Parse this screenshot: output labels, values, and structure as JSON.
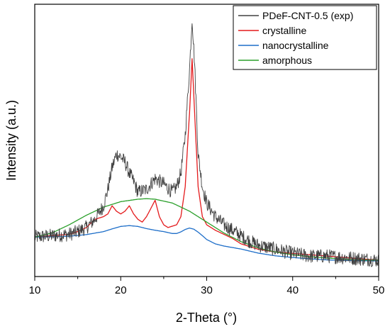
{
  "chart_data": {
    "type": "line",
    "title": "",
    "xlabel": "2-Theta (°)",
    "ylabel": "Intensity (a.u.)",
    "xlim": [
      10,
      50
    ],
    "ylim": [
      0,
      100
    ],
    "xticks": [
      10,
      20,
      30,
      40,
      50
    ],
    "y_tick_labels": "none",
    "grid": false,
    "legend_position": "top-right",
    "series": [
      {
        "name": "PDeF-CNT-0.5 (exp)",
        "color": "#404040",
        "noisy": true,
        "x": [
          10,
          12,
          14,
          15,
          16,
          17,
          18,
          18.5,
          19,
          19.5,
          20,
          20.5,
          21,
          21.5,
          22,
          23,
          24,
          25,
          26,
          26.5,
          27,
          27.5,
          28,
          28.3,
          28.6,
          29,
          29.5,
          30,
          31,
          32,
          33,
          34,
          35,
          36,
          38,
          40,
          42,
          44,
          46,
          48,
          50
        ],
        "y": [
          14.5,
          15,
          15.5,
          16.5,
          18,
          21,
          26,
          32,
          40,
          45,
          44,
          42,
          38,
          35,
          31,
          32,
          36,
          34,
          31,
          33,
          38,
          52,
          76,
          95,
          78,
          45,
          33,
          27,
          22,
          19,
          17,
          15,
          13,
          11.5,
          10,
          8.5,
          7.5,
          7.5,
          7,
          6.5,
          6
        ]
      },
      {
        "name": "crystalline",
        "color": "#e41a1c",
        "noisy": false,
        "x": [
          10,
          12,
          14,
          15,
          16,
          17,
          18,
          18.5,
          19,
          19.5,
          20,
          20.5,
          21,
          21.5,
          22,
          22.5,
          23,
          23.5,
          24,
          24.5,
          25,
          25.5,
          26,
          26.5,
          27,
          27.5,
          28,
          28.3,
          28.6,
          29,
          29.5,
          30,
          31,
          32,
          33,
          34,
          36,
          38,
          40,
          42,
          44,
          46,
          48,
          50
        ],
        "y": [
          14.5,
          15,
          15.5,
          16.5,
          18,
          21,
          22,
          23,
          26,
          24,
          23,
          24,
          26,
          23,
          21,
          20,
          22,
          25,
          28,
          22,
          19,
          18,
          18.5,
          19,
          22,
          33,
          60,
          80,
          60,
          33,
          22,
          19,
          17,
          15.5,
          14,
          12,
          10,
          9,
          8.5,
          8,
          7.5,
          7,
          6.5,
          6
        ]
      },
      {
        "name": "nanocrystalline",
        "color": "#1f6fc9",
        "noisy": false,
        "x": [
          10,
          12,
          14,
          16,
          18,
          19,
          20,
          21,
          22,
          23,
          24,
          25,
          26,
          26.5,
          27,
          27.5,
          28,
          28.5,
          29,
          29.5,
          30,
          31,
          32,
          34,
          36,
          38,
          40,
          42,
          44,
          46,
          48,
          50
        ],
        "y": [
          14.5,
          14.6,
          14.8,
          15.4,
          16.5,
          17.5,
          18.4,
          18.7,
          18.4,
          17.6,
          17,
          16.5,
          15.8,
          15.8,
          16.4,
          17.3,
          17.8,
          17.4,
          16.3,
          15,
          13.6,
          12,
          11.2,
          10.1,
          8.6,
          7.6,
          7,
          6.5,
          6.1,
          5.9,
          5.8,
          5.7
        ]
      },
      {
        "name": "amorphous",
        "color": "#2ca02c",
        "noisy": false,
        "x": [
          10,
          12,
          14,
          16,
          18,
          20,
          22,
          23,
          24,
          26,
          28,
          30,
          32,
          34,
          36,
          38,
          40,
          42,
          44,
          46,
          48,
          50
        ],
        "y": [
          14.5,
          16,
          19,
          22.5,
          25.5,
          27.5,
          28.4,
          28.6,
          28.4,
          27,
          24,
          20,
          16,
          12.8,
          10.5,
          9,
          8,
          7.3,
          6.8,
          6.4,
          6.1,
          6
        ]
      }
    ]
  },
  "labels": {
    "xlabel": "2-Theta (°)",
    "ylabel": "Intensity (a.u.)",
    "legend": [
      "PDeF-CNT-0.5 (exp)",
      "crystalline",
      "nanocrystalline",
      "amorphous"
    ]
  }
}
